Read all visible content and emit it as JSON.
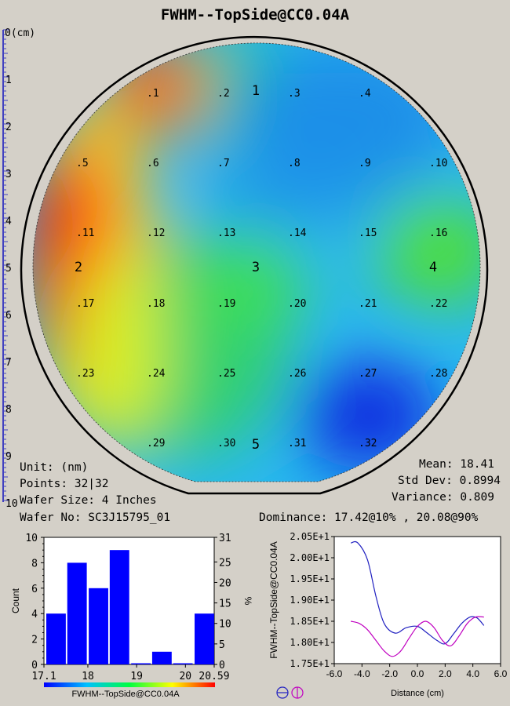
{
  "title": "FWHM--TopSide@CC0.04A",
  "ruler": {
    "labels": [
      "0(cm)",
      "1",
      "2",
      "3",
      "4",
      "5",
      "6",
      "7",
      "8",
      "9",
      "10"
    ]
  },
  "wafer": {
    "points": [
      {
        "label": ".1"
      },
      {
        "label": ".2"
      },
      {
        "label": ".3"
      },
      {
        "label": ".4"
      },
      {
        "label": ".5"
      },
      {
        "label": ".6"
      },
      {
        "label": ".7"
      },
      {
        "label": ".8"
      },
      {
        "label": ".9"
      },
      {
        "label": ".10"
      },
      {
        "label": ".11"
      },
      {
        "label": ".12"
      },
      {
        "label": ".13"
      },
      {
        "label": ".14"
      },
      {
        "label": ".15"
      },
      {
        "label": ".16"
      },
      {
        "label": ".17"
      },
      {
        "label": ".18"
      },
      {
        "label": ".19"
      },
      {
        "label": ".20"
      },
      {
        "label": ".21"
      },
      {
        "label": ".22"
      },
      {
        "label": ".23"
      },
      {
        "label": ".24"
      },
      {
        "label": ".25"
      },
      {
        "label": ".26"
      },
      {
        "label": ".27"
      },
      {
        "label": ".28"
      },
      {
        "label": ".29"
      },
      {
        "label": ".30"
      },
      {
        "label": ".31"
      },
      {
        "label": ".32"
      }
    ],
    "regions": [
      "1",
      "2",
      "3",
      "4",
      "5"
    ]
  },
  "info": {
    "unit": "Unit: (nm)",
    "points": "Points: 32|32",
    "wafer_size": "Wafer Size: 4 Inches",
    "wafer_no": "Wafer No: SC3J15795_01",
    "mean": "Mean: 18.41",
    "std_dev": "Std Dev: 0.8994",
    "variance": "Variance: 0.809",
    "dominance": "Dominance: 17.42@10% , 20.08@90%"
  },
  "chart_data": [
    {
      "type": "bar",
      "title": "",
      "xlabel": "",
      "ylabel": "Count",
      "y2label": "%",
      "x_tick_labels": [
        "17.1",
        "18",
        "19",
        "20",
        "20.59"
      ],
      "y_ticks": [
        "0",
        "2",
        "4",
        "6",
        "8",
        "10"
      ],
      "y2_ticks": [
        "0",
        "5",
        "10",
        "15",
        "20",
        "25",
        "31"
      ],
      "ylim": [
        0,
        10
      ],
      "xlim": [
        17.1,
        20.59
      ],
      "bins": [
        {
          "x0": 17.1,
          "x1": 17.5,
          "count": 4
        },
        {
          "x0": 17.53,
          "x1": 17.93,
          "count": 8
        },
        {
          "x0": 17.97,
          "x1": 18.37,
          "count": 6
        },
        {
          "x0": 18.4,
          "x1": 18.8,
          "count": 9
        },
        {
          "x0": 18.84,
          "x1": 19.24,
          "count": 0
        },
        {
          "x0": 19.27,
          "x1": 19.67,
          "count": 1
        },
        {
          "x0": 19.7,
          "x1": 20.1,
          "count": 0
        },
        {
          "x0": 20.14,
          "x1": 20.54,
          "count": 4
        }
      ],
      "colorbar_label": "FWHM--TopSide@CC0.04A",
      "bar_color": "#0000ff"
    },
    {
      "type": "line",
      "title": "",
      "xlabel": "Distance (cm)",
      "ylabel": "FWHM--TopSide@CC0.04A",
      "x_ticks": [
        "-6.0",
        "-4.0",
        "-2.0",
        "0.0",
        "2.0",
        "4.0",
        "6.0"
      ],
      "y_ticks": [
        "1.75E+1",
        "1.80E+1",
        "1.85E+1",
        "1.90E+1",
        "1.95E+1",
        "2.00E+1",
        "2.05E+1"
      ],
      "xlim": [
        -6,
        6
      ],
      "ylim": [
        17.5,
        20.5
      ],
      "series": [
        {
          "color": "#2020c0",
          "x": [
            -4.8,
            -4.3,
            -3.6,
            -3.0,
            -2.4,
            -1.6,
            -0.8,
            0.0,
            0.6,
            1.4,
            2.0,
            2.6,
            3.2,
            3.8,
            4.3,
            4.8
          ],
          "y": [
            20.35,
            20.35,
            19.95,
            19.1,
            18.45,
            18.22,
            18.35,
            18.38,
            18.25,
            18.05,
            17.97,
            18.2,
            18.45,
            18.6,
            18.58,
            18.4
          ]
        },
        {
          "color": "#c000c0",
          "x": [
            -4.8,
            -4.2,
            -3.6,
            -3.0,
            -2.4,
            -1.8,
            -1.2,
            -0.6,
            0.0,
            0.6,
            1.2,
            1.8,
            2.4,
            3.0,
            3.6,
            4.2,
            4.8
          ],
          "y": [
            18.5,
            18.45,
            18.3,
            18.05,
            17.8,
            17.67,
            17.8,
            18.1,
            18.38,
            18.5,
            18.35,
            18.05,
            17.92,
            18.15,
            18.45,
            18.6,
            18.6
          ]
        }
      ],
      "legend_icons": [
        "circle-minus-icon",
        "circle-bar-icon"
      ]
    }
  ]
}
